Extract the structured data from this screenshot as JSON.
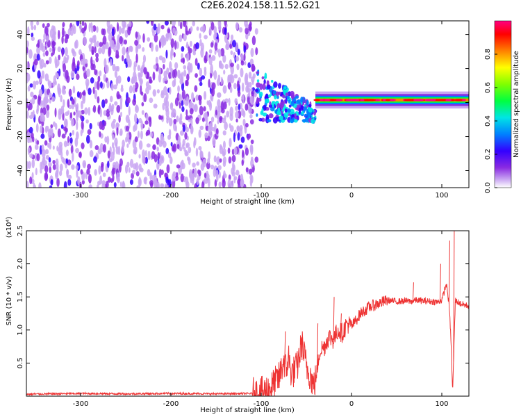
{
  "title": "C2E6.2024.158.11.52.G21",
  "chart_data": [
    {
      "type": "heatmap",
      "xlabel": "Height of straight line (km)",
      "ylabel": "Frequency (Hz)",
      "xlim": [
        -360,
        130
      ],
      "ylim": [
        -50,
        48
      ],
      "xticks": [
        -300,
        -200,
        -100,
        0,
        100
      ],
      "xtick_labels": [
        "-300",
        "-200",
        "-100",
        "0",
        "100"
      ],
      "yticks": [
        -40,
        -20,
        0,
        20,
        40
      ],
      "ytick_labels": [
        "-40",
        "-20",
        "0",
        "20",
        "40"
      ],
      "colorbar": {
        "label": "Normalized spectral amplitude",
        "range": [
          0,
          1
        ],
        "ticks": [
          0.0,
          0.2,
          0.4,
          0.6,
          0.8
        ],
        "tick_labels": [
          "0.0",
          "0.2",
          "0.4",
          "0.6",
          "0.8"
        ],
        "colors": [
          "#ffffff",
          "#c9a6f2",
          "#8a2be2",
          "#3300ff",
          "#0080ff",
          "#00e5e5",
          "#00ff40",
          "#80ff00",
          "#ffff00",
          "#ff8000",
          "#ff0000",
          "#ff0080"
        ]
      },
      "description_values": {
        "noise_region_x": [
          -360,
          -105
        ],
        "transition_region_x": [
          -105,
          -40
        ],
        "signal_frequency_hz": 1.5,
        "signal_region_x": [
          -40,
          130
        ]
      }
    },
    {
      "type": "line",
      "xlabel": "Height of straight line (km)",
      "ylabel": "SNR (10 * v/v)",
      "scale_label": "(x10⁴)",
      "xlim": [
        -360,
        130
      ],
      "ylim": [
        0,
        25000
      ],
      "xticks": [
        -300,
        -200,
        -100,
        0,
        100
      ],
      "xtick_labels": [
        "-300",
        "-200",
        "-100",
        "0",
        "100"
      ],
      "yticks": [
        5000,
        10000,
        15000,
        20000,
        25000
      ],
      "ytick_labels": [
        "0.5",
        "1.0",
        "1.5",
        "2.0",
        "2.5"
      ],
      "color": "#ee3333",
      "series": [
        {
          "x": [
            -360,
            -300,
            -250,
            -200,
            -150,
            -110,
            -100,
            -90,
            -80,
            -75,
            -72,
            -70,
            -68,
            -65,
            -60,
            -55,
            -50,
            -45,
            -42,
            -40,
            -38,
            -35,
            -30,
            -25,
            -20,
            -15,
            -10,
            -5,
            0,
            10,
            20,
            30,
            40,
            50,
            60,
            66,
            70,
            80,
            90,
            95,
            100,
            105,
            108,
            110,
            112,
            115,
            120,
            130
          ],
          "y": [
            300,
            400,
            350,
            400,
            350,
            400,
            500,
            1200,
            2800,
            5500,
            3500,
            6500,
            4000,
            3500,
            4500,
            8000,
            4500,
            3000,
            1500,
            2500,
            4000,
            7000,
            7500,
            9000,
            8500,
            10000,
            9500,
            11000,
            10500,
            12500,
            13500,
            14000,
            14500,
            14300,
            14400,
            14300,
            14500,
            14400,
            14300,
            14200,
            14500,
            17000,
            14000,
            9000,
            600,
            14500,
            14000,
            13600
          ],
          "spikes": [
            {
              "x": -74,
              "y": 9800
            },
            {
              "x": -38,
              "y": 11000
            },
            {
              "x": -20,
              "y": 15000
            },
            {
              "x": -12,
              "y": 12500
            },
            {
              "x": 68,
              "y": 17200
            },
            {
              "x": 98,
              "y": 20000
            },
            {
              "x": 108,
              "y": 23500
            },
            {
              "x": 113,
              "y": 25000
            }
          ]
        }
      ]
    }
  ]
}
